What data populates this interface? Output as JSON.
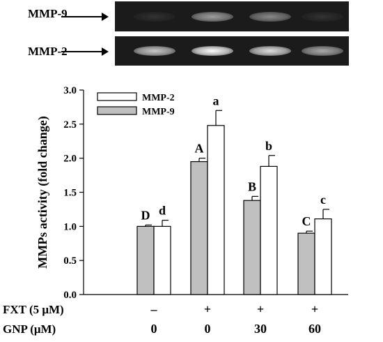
{
  "gels": [
    {
      "label": "MMP-9",
      "intensities": [
        0.05,
        0.55,
        0.45,
        0.05
      ]
    },
    {
      "label": "MMP-2",
      "intensities": [
        0.75,
        1.0,
        0.85,
        0.6
      ]
    }
  ],
  "chart_data": {
    "type": "bar",
    "title": "",
    "xlabel": "",
    "ylabel": "MMPs activity (fold change)",
    "ylim": [
      0,
      3.0
    ],
    "yticks": [
      "0.0",
      "0.5",
      "1.0",
      "1.5",
      "2.0",
      "2.5",
      "3.0"
    ],
    "legend_position": "top-left",
    "series": [
      {
        "name": "MMP-9",
        "color": "#c0c0c0",
        "values": [
          1.0,
          1.95,
          1.38,
          0.9
        ],
        "errors": [
          0.02,
          0.05,
          0.06,
          0.03
        ],
        "letters": [
          "D",
          "A",
          "B",
          "C"
        ]
      },
      {
        "name": "MMP-2",
        "color": "#ffffff",
        "values": [
          1.0,
          2.48,
          1.88,
          1.11
        ],
        "errors": [
          0.09,
          0.22,
          0.16,
          0.14
        ],
        "letters": [
          "d",
          "a",
          "b",
          "c"
        ]
      }
    ],
    "conditions": [
      {
        "label": "FXT (5 μM)",
        "values": [
          "–",
          "+",
          "+",
          "+"
        ]
      },
      {
        "label": "GNP (μM)",
        "values": [
          "0",
          "0",
          "30",
          "60"
        ]
      }
    ]
  }
}
